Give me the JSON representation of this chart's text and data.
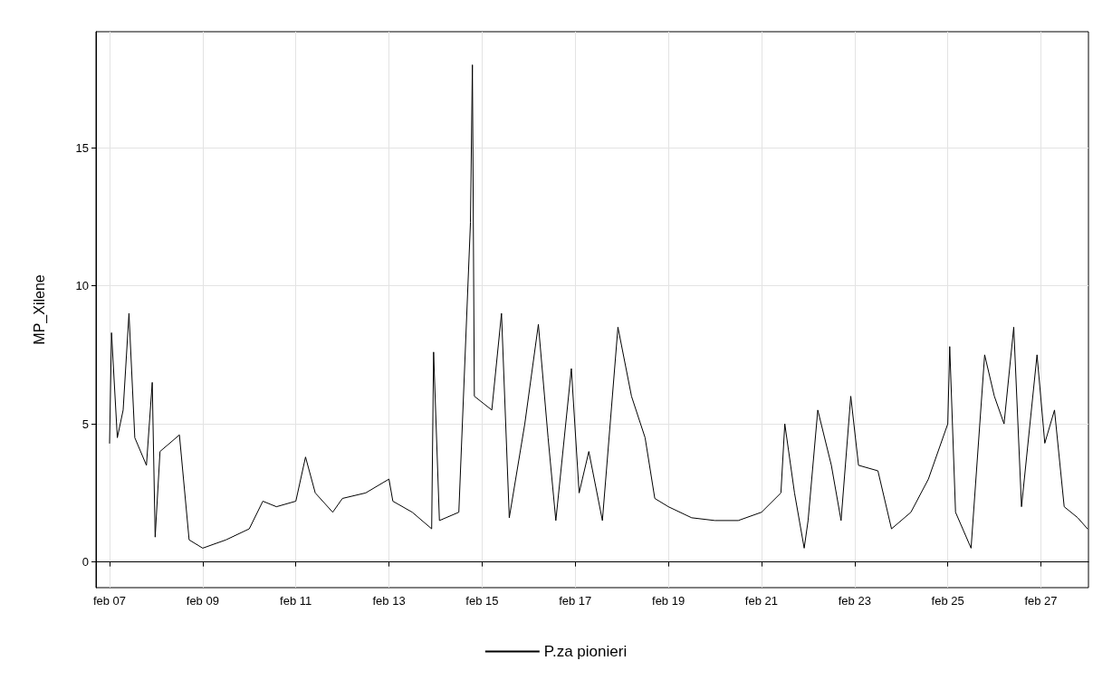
{
  "chart_data": {
    "type": "line",
    "ylabel": "MP_Xilene",
    "legend": "bottom",
    "grid": true,
    "marker": "none",
    "line_style": "solid",
    "xlim": [
      "--02-06T17:00",
      "--02-28T00:30"
    ],
    "ylim": [
      -0.93,
      19.2
    ],
    "yticks": [
      0,
      5,
      10,
      15
    ],
    "xticks": [
      {
        "value": "--02-07",
        "label": "feb 07"
      },
      {
        "value": "--02-09",
        "label": "feb 09"
      },
      {
        "value": "--02-11",
        "label": "feb 11"
      },
      {
        "value": "--02-13",
        "label": "feb 13"
      },
      {
        "value": "--02-15",
        "label": "feb 15"
      },
      {
        "value": "--02-17",
        "label": "feb 17"
      },
      {
        "value": "--02-19",
        "label": "feb 19"
      },
      {
        "value": "--02-21",
        "label": "feb 21"
      },
      {
        "value": "--02-23",
        "label": "feb 23"
      },
      {
        "value": "--02-25",
        "label": "feb 25"
      },
      {
        "value": "--02-27",
        "label": "feb 27"
      }
    ],
    "series": [
      {
        "name": "P.za pionieri",
        "color": "#000000",
        "x": [
          "--02-07T00:00",
          "--02-07T01:00",
          "--02-07T04:00",
          "--02-07T07:00",
          "--02-07T10:00",
          "--02-07T13:00",
          "--02-07T19:00",
          "--02-07T22:00",
          "--02-07T23:30",
          "--02-08T02:00",
          "--02-08T12:00",
          "--02-08T17:00",
          "--02-09T00:00",
          "--02-09T12:00",
          "--02-10T00:00",
          "--02-10T07:00",
          "--02-10T14:00",
          "--02-11T00:00",
          "--02-11T05:00",
          "--02-11T10:00",
          "--02-11T19:00",
          "--02-12T00:00",
          "--02-12T12:00",
          "--02-13T00:00",
          "--02-13T02:00",
          "--02-13T12:00",
          "--02-13T22:00",
          "--02-13T23:00",
          "--02-14T02:00",
          "--02-14T12:00",
          "--02-14T18:00",
          "--02-14T19:00",
          "--02-14T20:00",
          "--02-15T05:00",
          "--02-15T10:00",
          "--02-15T14:00",
          "--02-15T22:00",
          "--02-16T05:00",
          "--02-16T10:00",
          "--02-16T14:00",
          "--02-16T22:00",
          "--02-17T02:00",
          "--02-17T07:00",
          "--02-17T14:00",
          "--02-17T22:00",
          "--02-18T05:00",
          "--02-18T12:00",
          "--02-18T17:00",
          "--02-19T00:00",
          "--02-19T12:00",
          "--02-20T00:00",
          "--02-20T12:00",
          "--02-21T00:00",
          "--02-21T10:00",
          "--02-21T12:00",
          "--02-21T17:00",
          "--02-21T22:00",
          "--02-22T00:00",
          "--02-22T05:00",
          "--02-22T12:00",
          "--02-22T17:00",
          "--02-22T22:00",
          "--02-23T02:00",
          "--02-23T12:00",
          "--02-23T19:00",
          "--02-24T05:00",
          "--02-24T14:00",
          "--02-25T00:00",
          "--02-25T01:00",
          "--02-25T04:00",
          "--02-25T12:00",
          "--02-25T19:00",
          "--02-26T00:00",
          "--02-26T05:00",
          "--02-26T10:00",
          "--02-26T14:00",
          "--02-26T22:00",
          "--02-27T02:00",
          "--02-27T07:00",
          "--02-27T12:00",
          "--02-27T19:00",
          "--02-28T00:00"
        ],
        "values": [
          4.3,
          8.3,
          4.5,
          5.5,
          9.0,
          4.5,
          3.5,
          6.5,
          0.9,
          4.0,
          4.6,
          0.8,
          0.5,
          0.8,
          1.2,
          2.2,
          2.0,
          2.2,
          3.8,
          2.5,
          1.8,
          2.3,
          2.5,
          3.0,
          2.2,
          1.8,
          1.2,
          7.6,
          1.5,
          1.8,
          12.3,
          18.0,
          6.0,
          5.5,
          9.0,
          1.6,
          5.0,
          8.6,
          4.5,
          1.5,
          7.0,
          2.5,
          4.0,
          1.5,
          8.5,
          6.0,
          4.5,
          2.3,
          2.0,
          1.6,
          1.5,
          1.5,
          1.8,
          2.5,
          5.0,
          2.5,
          0.5,
          1.5,
          5.5,
          3.5,
          1.5,
          6.0,
          3.5,
          3.3,
          1.2,
          1.8,
          3.0,
          5.0,
          7.8,
          1.8,
          0.5,
          7.5,
          6.0,
          5.0,
          8.5,
          2.0,
          7.5,
          4.3,
          5.5,
          2.0,
          1.6,
          1.2
        ]
      }
    ]
  }
}
